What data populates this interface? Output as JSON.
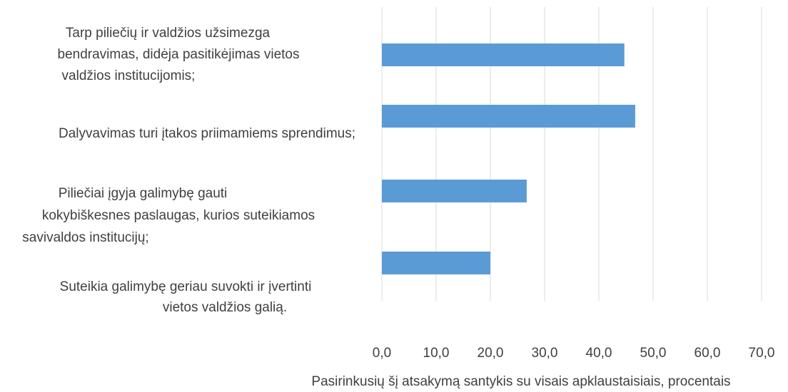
{
  "chart_data": {
    "type": "barh",
    "categories": [
      [
        "Tarp piliečių ir valdžios užsimezga",
        "bendravimas, didėja pasitikėjimas vietos",
        "valdžios institucijomis;"
      ],
      [
        "Dalyvavimas turi įtakos priimamiems sprendimus;"
      ],
      [
        "Piliečiai įgyja galimybę gauti",
        "kokybiškesnes paslaugas, kurios suteikiamos",
        "savivaldos institucijų;"
      ],
      [
        "Suteikia galimybę geriau suvokti ir įvertinti",
        "vietos valdžios galią."
      ]
    ],
    "values": [
      44.7,
      46.7,
      26.7,
      20.0
    ],
    "color": "#5b9bd5",
    "xlim": [
      0,
      70
    ],
    "xticks": [
      {
        "value": 0,
        "label": "0,0"
      },
      {
        "value": 10,
        "label": "10,0"
      },
      {
        "value": 20,
        "label": "20,0"
      },
      {
        "value": 30,
        "label": "30,0"
      },
      {
        "value": 40,
        "label": "40,0"
      },
      {
        "value": 50,
        "label": "50,0"
      },
      {
        "value": 60,
        "label": "60,0"
      },
      {
        "value": 70,
        "label": "70,0"
      }
    ],
    "xlabel": "Pasirinkusių šį atsakymą santykis su visais apklaustaisiais, procentais",
    "grid": true
  }
}
